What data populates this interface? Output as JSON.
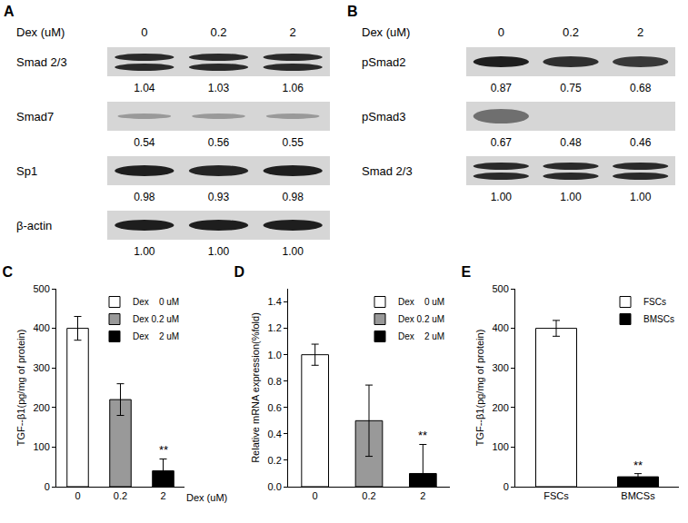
{
  "blots": [
    {
      "panel": "A",
      "header": "Dex (uM)",
      "lanes": [
        "0",
        "0.2",
        "2"
      ],
      "rows": [
        {
          "label": "Smad 2/3",
          "values": [
            "1.04",
            "1.03",
            "1.06"
          ]
        },
        {
          "label": "Smad7",
          "values": [
            "0.54",
            "0.56",
            "0.55"
          ]
        },
        {
          "label": "Sp1",
          "values": [
            "0.98",
            "0.93",
            "0.98"
          ]
        },
        {
          "label": "β-actin",
          "values": [
            "1.00",
            "1.00",
            "1.00"
          ]
        }
      ]
    },
    {
      "panel": "B",
      "header": "Dex (uM)",
      "lanes": [
        "0",
        "0.2",
        "2"
      ],
      "rows": [
        {
          "label": "pSmad2",
          "values": [
            "0.87",
            "0.75",
            "0.68"
          ]
        },
        {
          "label": "pSmad3",
          "values": [
            "0.67",
            "0.48",
            "0.46"
          ]
        },
        {
          "label": "Smad 2/3",
          "values": [
            "1.00",
            "1.00",
            "1.00"
          ]
        }
      ]
    }
  ],
  "chart_data": [
    {
      "type": "bar",
      "title": "C",
      "categories": [
        "0",
        "0.2",
        "2"
      ],
      "x_label": "Dex (uM)",
      "y_label": "TGF--β1(pg/mg of protein)",
      "ylim": [
        0,
        500
      ],
      "yticks": [
        0,
        100,
        200,
        300,
        400,
        500
      ],
      "grid": false,
      "legend": "upper right",
      "series": [
        {
          "name": "Dex    0 uM",
          "color": "#ffffff",
          "values": [
            400,
            null,
            null
          ],
          "errors": [
            30,
            null,
            null
          ]
        },
        {
          "name": "Dex 0.2 uM",
          "color": "#999999",
          "values": [
            null,
            220,
            null
          ],
          "errors": [
            null,
            40,
            null
          ]
        },
        {
          "name": "Dex    2 uM",
          "color": "#000000",
          "values": [
            null,
            null,
            40
          ],
          "errors": [
            null,
            null,
            30
          ]
        }
      ],
      "annotations": [
        {
          "text": "**",
          "category": "2"
        }
      ]
    },
    {
      "type": "bar",
      "title": "D",
      "categories": [
        "0",
        "0.2",
        "2"
      ],
      "y_label": "Relative mRNA expression(%fold)",
      "ylim": [
        0,
        1.5
      ],
      "yticks": [
        {
          "value": 0,
          "label": "0.0"
        },
        0.2,
        0.4,
        0.6,
        0.8,
        {
          "value": 1,
          "label": "1.0"
        },
        1.2,
        1.4
      ],
      "grid": false,
      "legend": "upper right",
      "series": [
        {
          "name": "Dex    0 uM",
          "color": "#ffffff",
          "values": [
            1.0,
            null,
            null
          ],
          "errors": [
            0.08,
            null,
            null
          ]
        },
        {
          "name": "Dex 0.2 uM",
          "color": "#999999",
          "values": [
            null,
            0.5,
            null
          ],
          "errors": [
            null,
            0.27,
            null
          ]
        },
        {
          "name": "Dex    2 uM",
          "color": "#000000",
          "values": [
            null,
            null,
            0.1
          ],
          "errors": [
            null,
            null,
            0.22
          ]
        }
      ],
      "annotations": [
        {
          "text": "**",
          "category": "2"
        }
      ]
    },
    {
      "type": "bar",
      "title": "E",
      "categories": [
        "FSCs",
        "BMCSs"
      ],
      "y_label": "TGF--β1(pg/mg of protein)",
      "ylim": [
        0,
        500
      ],
      "yticks": [
        0,
        100,
        200,
        300,
        400,
        500
      ],
      "grid": false,
      "legend": "upper right",
      "series": [
        {
          "name": "FSCs",
          "color": "#ffffff",
          "values": [
            400,
            null
          ],
          "errors": [
            20,
            null
          ]
        },
        {
          "name": "BMSCs",
          "color": "#000000",
          "values": [
            null,
            25
          ],
          "errors": [
            null,
            8
          ]
        }
      ],
      "annotations": [
        {
          "text": "**",
          "category": "BMCSs"
        }
      ]
    }
  ]
}
